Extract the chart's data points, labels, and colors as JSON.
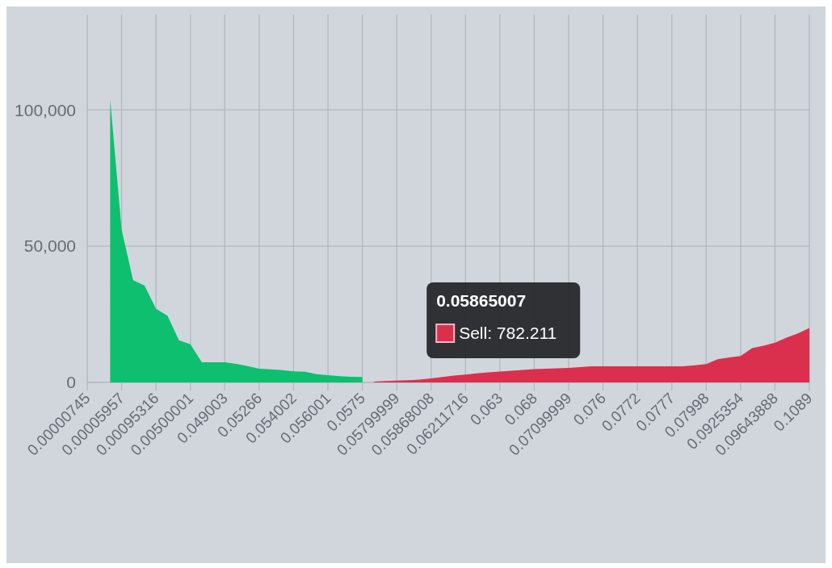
{
  "chart_data": {
    "type": "area",
    "categories": [
      "0.00000745",
      null,
      null,
      "0.00005957",
      null,
      null,
      "0.00095316",
      null,
      null,
      "0.00500001",
      null,
      null,
      "0.049003",
      null,
      null,
      "0.05266",
      null,
      null,
      "0.054002",
      null,
      null,
      "0.056001",
      null,
      null,
      "0.0575",
      null,
      null,
      "0.05799999",
      null,
      null,
      "0.05868008",
      null,
      null,
      "0.06211716",
      null,
      null,
      "0.063",
      null,
      null,
      "0.068",
      null,
      null,
      "0.07099999",
      null,
      null,
      "0.076",
      null,
      null,
      "0.0772",
      null,
      null,
      "0.0777",
      null,
      null,
      "0.07998",
      null,
      null,
      "0.0925354",
      null,
      null,
      "0.09643888",
      null,
      null,
      "0.1089"
    ],
    "series": [
      {
        "color": "#0dbf6f",
        "values": [
          null,
          null,
          104000,
          56000,
          37500,
          35500,
          27000,
          24500,
          15500,
          14000,
          7400,
          7400,
          7400,
          6800,
          6000,
          5000,
          4800,
          4500,
          4100,
          3900,
          3000,
          2700,
          2300,
          2100,
          2000,
          null,
          null,
          null,
          null,
          null,
          null,
          null,
          null,
          null,
          null,
          null,
          null,
          null,
          null,
          null,
          null,
          null,
          null,
          null,
          null,
          null,
          null,
          null,
          null,
          null,
          null,
          null,
          null,
          null,
          null,
          null,
          null,
          null,
          null,
          null,
          null,
          null,
          null,
          null
        ]
      },
      {
        "color": "#db2f4e",
        "values": [
          null,
          null,
          null,
          null,
          null,
          null,
          null,
          null,
          null,
          null,
          null,
          null,
          null,
          null,
          null,
          null,
          null,
          null,
          null,
          null,
          null,
          null,
          null,
          null,
          null,
          300,
          500,
          700,
          800,
          1000,
          1500,
          2000,
          2500,
          2900,
          3300,
          3700,
          4000,
          4300,
          4600,
          4900,
          5000,
          5200,
          5300,
          5600,
          5900,
          5900,
          5900,
          5900,
          5900,
          5900,
          5900,
          5900,
          5900,
          6300,
          6700,
          8500,
          9200,
          9700,
          12600,
          13500,
          14600,
          16400,
          18000,
          20000
        ]
      }
    ],
    "ylim": [
      0,
      135000
    ],
    "yticks": [
      0,
      {
        "value": 50000,
        "label": "50,000"
      },
      {
        "value": 100000,
        "label": "100,000"
      }
    ],
    "grid": true,
    "annotations": [
      "0.05865007",
      "Sell: 782.211"
    ]
  }
}
